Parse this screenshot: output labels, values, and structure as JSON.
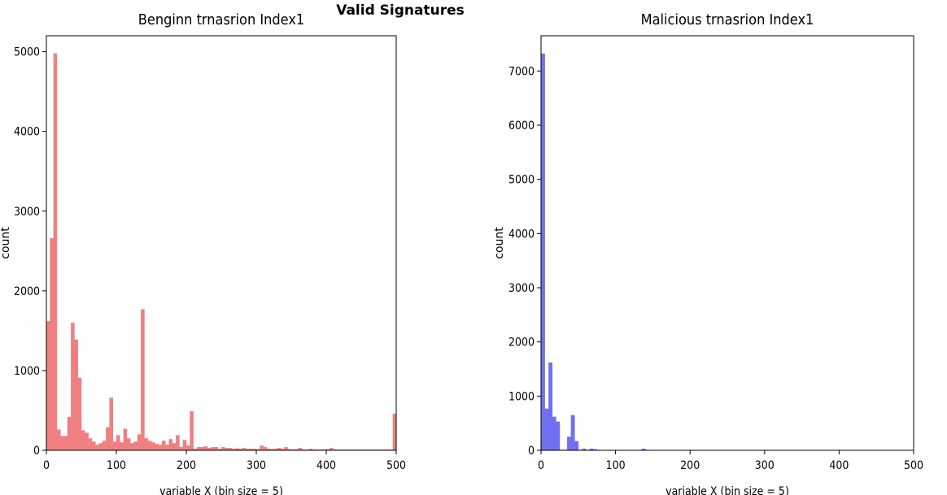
{
  "figure": {
    "suptitle": "Valid Signatures"
  },
  "chart_data": [
    {
      "type": "bar",
      "title": "Benginn trnasrion Index1",
      "xlabel": "variable X (bin size = 5)",
      "ylabel": "count",
      "xlim": [
        0,
        500
      ],
      "ylim": [
        0,
        5200
      ],
      "xticks": [
        0,
        100,
        200,
        300,
        400,
        500
      ],
      "yticks": [
        0,
        1000,
        2000,
        3000,
        4000,
        5000
      ],
      "bin_width": 5,
      "color": "#f08080",
      "grid": false,
      "bins": [
        {
          "x": 0,
          "y": 1620
        },
        {
          "x": 5,
          "y": 2660
        },
        {
          "x": 10,
          "y": 4980
        },
        {
          "x": 15,
          "y": 260
        },
        {
          "x": 20,
          "y": 180
        },
        {
          "x": 25,
          "y": 180
        },
        {
          "x": 30,
          "y": 420
        },
        {
          "x": 35,
          "y": 1600
        },
        {
          "x": 40,
          "y": 1390
        },
        {
          "x": 45,
          "y": 910
        },
        {
          "x": 50,
          "y": 250
        },
        {
          "x": 55,
          "y": 220
        },
        {
          "x": 60,
          "y": 150
        },
        {
          "x": 65,
          "y": 110
        },
        {
          "x": 70,
          "y": 70
        },
        {
          "x": 75,
          "y": 90
        },
        {
          "x": 80,
          "y": 120
        },
        {
          "x": 85,
          "y": 290
        },
        {
          "x": 90,
          "y": 660
        },
        {
          "x": 95,
          "y": 110
        },
        {
          "x": 100,
          "y": 190
        },
        {
          "x": 105,
          "y": 100
        },
        {
          "x": 110,
          "y": 270
        },
        {
          "x": 115,
          "y": 150
        },
        {
          "x": 120,
          "y": 90
        },
        {
          "x": 125,
          "y": 110
        },
        {
          "x": 130,
          "y": 200
        },
        {
          "x": 135,
          "y": 1770
        },
        {
          "x": 140,
          "y": 150
        },
        {
          "x": 145,
          "y": 120
        },
        {
          "x": 150,
          "y": 100
        },
        {
          "x": 155,
          "y": 80
        },
        {
          "x": 160,
          "y": 70
        },
        {
          "x": 165,
          "y": 120
        },
        {
          "x": 170,
          "y": 70
        },
        {
          "x": 175,
          "y": 140
        },
        {
          "x": 180,
          "y": 90
        },
        {
          "x": 185,
          "y": 190
        },
        {
          "x": 190,
          "y": 40
        },
        {
          "x": 195,
          "y": 130
        },
        {
          "x": 200,
          "y": 60
        },
        {
          "x": 205,
          "y": 490
        },
        {
          "x": 210,
          "y": 20
        },
        {
          "x": 215,
          "y": 40
        },
        {
          "x": 220,
          "y": 40
        },
        {
          "x": 225,
          "y": 50
        },
        {
          "x": 230,
          "y": 30
        },
        {
          "x": 235,
          "y": 40
        },
        {
          "x": 240,
          "y": 40
        },
        {
          "x": 245,
          "y": 20
        },
        {
          "x": 250,
          "y": 40
        },
        {
          "x": 255,
          "y": 30
        },
        {
          "x": 260,
          "y": 30
        },
        {
          "x": 265,
          "y": 20
        },
        {
          "x": 270,
          "y": 25
        },
        {
          "x": 275,
          "y": 20
        },
        {
          "x": 280,
          "y": 30
        },
        {
          "x": 285,
          "y": 20
        },
        {
          "x": 290,
          "y": 20
        },
        {
          "x": 295,
          "y": 20
        },
        {
          "x": 300,
          "y": 15
        },
        {
          "x": 305,
          "y": 60
        },
        {
          "x": 310,
          "y": 40
        },
        {
          "x": 315,
          "y": 20
        },
        {
          "x": 320,
          "y": 15
        },
        {
          "x": 325,
          "y": 20
        },
        {
          "x": 330,
          "y": 30
        },
        {
          "x": 335,
          "y": 20
        },
        {
          "x": 340,
          "y": 40
        },
        {
          "x": 345,
          "y": 15
        },
        {
          "x": 350,
          "y": 10
        },
        {
          "x": 355,
          "y": 15
        },
        {
          "x": 360,
          "y": 30
        },
        {
          "x": 365,
          "y": 10
        },
        {
          "x": 370,
          "y": 10
        },
        {
          "x": 375,
          "y": 20
        },
        {
          "x": 380,
          "y": 10
        },
        {
          "x": 385,
          "y": 10
        },
        {
          "x": 390,
          "y": 10
        },
        {
          "x": 395,
          "y": 10
        },
        {
          "x": 400,
          "y": 15
        },
        {
          "x": 405,
          "y": 30
        },
        {
          "x": 410,
          "y": 10
        },
        {
          "x": 415,
          "y": 10
        },
        {
          "x": 420,
          "y": 10
        },
        {
          "x": 425,
          "y": 10
        },
        {
          "x": 430,
          "y": 10
        },
        {
          "x": 435,
          "y": 10
        },
        {
          "x": 440,
          "y": 10
        },
        {
          "x": 445,
          "y": 10
        },
        {
          "x": 450,
          "y": 10
        },
        {
          "x": 455,
          "y": 10
        },
        {
          "x": 460,
          "y": 10
        },
        {
          "x": 465,
          "y": 10
        },
        {
          "x": 470,
          "y": 10
        },
        {
          "x": 475,
          "y": 10
        },
        {
          "x": 480,
          "y": 10
        },
        {
          "x": 485,
          "y": 10
        },
        {
          "x": 490,
          "y": 10
        },
        {
          "x": 495,
          "y": 460
        }
      ]
    },
    {
      "type": "bar",
      "title": "Malicious trnasrion Index1",
      "xlabel": "variable X (bin size = 5)",
      "ylabel": "count",
      "xlim": [
        0,
        500
      ],
      "ylim": [
        0,
        7650
      ],
      "xticks": [
        0,
        100,
        200,
        300,
        400,
        500
      ],
      "yticks": [
        0,
        1000,
        2000,
        3000,
        4000,
        5000,
        6000,
        7000
      ],
      "bin_width": 5,
      "color": "#7070f0",
      "grid": false,
      "bins": [
        {
          "x": 0,
          "y": 7320
        },
        {
          "x": 5,
          "y": 770
        },
        {
          "x": 10,
          "y": 1620
        },
        {
          "x": 15,
          "y": 620
        },
        {
          "x": 20,
          "y": 530
        },
        {
          "x": 25,
          "y": 10
        },
        {
          "x": 30,
          "y": 10
        },
        {
          "x": 35,
          "y": 250
        },
        {
          "x": 40,
          "y": 650
        },
        {
          "x": 45,
          "y": 170
        },
        {
          "x": 50,
          "y": 10
        },
        {
          "x": 55,
          "y": 30
        },
        {
          "x": 60,
          "y": 10
        },
        {
          "x": 65,
          "y": 30
        },
        {
          "x": 70,
          "y": 20
        },
        {
          "x": 75,
          "y": 5
        },
        {
          "x": 80,
          "y": 5
        },
        {
          "x": 85,
          "y": 5
        },
        {
          "x": 90,
          "y": 5
        },
        {
          "x": 95,
          "y": 5
        },
        {
          "x": 100,
          "y": 5
        },
        {
          "x": 105,
          "y": 5
        },
        {
          "x": 110,
          "y": 5
        },
        {
          "x": 115,
          "y": 5
        },
        {
          "x": 120,
          "y": 5
        },
        {
          "x": 125,
          "y": 5
        },
        {
          "x": 130,
          "y": 5
        },
        {
          "x": 135,
          "y": 30
        },
        {
          "x": 140,
          "y": 5
        },
        {
          "x": 145,
          "y": 5
        },
        {
          "x": 150,
          "y": 5
        },
        {
          "x": 155,
          "y": 5
        },
        {
          "x": 160,
          "y": 5
        },
        {
          "x": 165,
          "y": 5
        },
        {
          "x": 170,
          "y": 5
        },
        {
          "x": 175,
          "y": 5
        },
        {
          "x": 180,
          "y": 5
        },
        {
          "x": 185,
          "y": 5
        },
        {
          "x": 190,
          "y": 5
        },
        {
          "x": 195,
          "y": 5
        },
        {
          "x": 200,
          "y": 5
        },
        {
          "x": 205,
          "y": 5
        },
        {
          "x": 210,
          "y": 5
        },
        {
          "x": 215,
          "y": 5
        },
        {
          "x": 220,
          "y": 5
        },
        {
          "x": 225,
          "y": 5
        },
        {
          "x": 230,
          "y": 5
        },
        {
          "x": 235,
          "y": 5
        },
        {
          "x": 240,
          "y": 5
        },
        {
          "x": 245,
          "y": 5
        },
        {
          "x": 250,
          "y": 5
        },
        {
          "x": 255,
          "y": 5
        },
        {
          "x": 260,
          "y": 5
        },
        {
          "x": 265,
          "y": 5
        },
        {
          "x": 270,
          "y": 5
        },
        {
          "x": 275,
          "y": 5
        },
        {
          "x": 280,
          "y": 5
        },
        {
          "x": 285,
          "y": 5
        },
        {
          "x": 290,
          "y": 5
        },
        {
          "x": 295,
          "y": 5
        },
        {
          "x": 300,
          "y": 5
        },
        {
          "x": 305,
          "y": 5
        },
        {
          "x": 310,
          "y": 5
        },
        {
          "x": 315,
          "y": 5
        },
        {
          "x": 320,
          "y": 5
        },
        {
          "x": 325,
          "y": 5
        },
        {
          "x": 330,
          "y": 5
        },
        {
          "x": 335,
          "y": 5
        },
        {
          "x": 340,
          "y": 5
        },
        {
          "x": 345,
          "y": 5
        },
        {
          "x": 350,
          "y": 5
        },
        {
          "x": 355,
          "y": 5
        },
        {
          "x": 360,
          "y": 5
        },
        {
          "x": 365,
          "y": 5
        },
        {
          "x": 370,
          "y": 5
        },
        {
          "x": 375,
          "y": 5
        },
        {
          "x": 380,
          "y": 5
        },
        {
          "x": 385,
          "y": 5
        },
        {
          "x": 390,
          "y": 5
        },
        {
          "x": 395,
          "y": 5
        },
        {
          "x": 400,
          "y": 5
        },
        {
          "x": 405,
          "y": 5
        },
        {
          "x": 410,
          "y": 5
        },
        {
          "x": 415,
          "y": 5
        },
        {
          "x": 420,
          "y": 5
        },
        {
          "x": 425,
          "y": 5
        },
        {
          "x": 430,
          "y": 5
        },
        {
          "x": 435,
          "y": 5
        },
        {
          "x": 440,
          "y": 5
        },
        {
          "x": 445,
          "y": 5
        },
        {
          "x": 450,
          "y": 5
        },
        {
          "x": 455,
          "y": 5
        },
        {
          "x": 460,
          "y": 5
        },
        {
          "x": 465,
          "y": 5
        },
        {
          "x": 470,
          "y": 5
        },
        {
          "x": 475,
          "y": 5
        },
        {
          "x": 480,
          "y": 5
        },
        {
          "x": 485,
          "y": 5
        },
        {
          "x": 490,
          "y": 5
        },
        {
          "x": 495,
          "y": 5
        }
      ]
    }
  ]
}
